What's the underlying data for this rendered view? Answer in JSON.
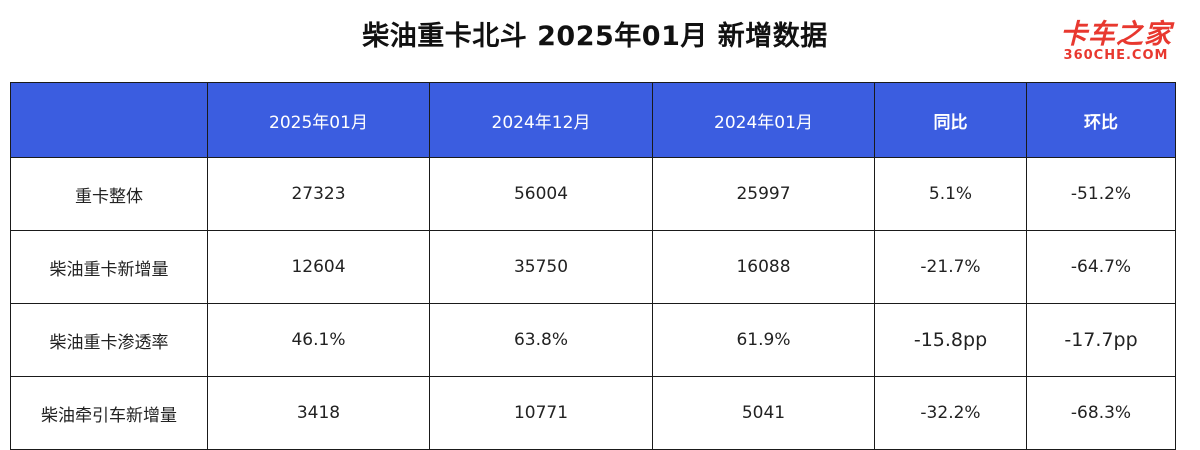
{
  "title": "柴油重卡北斗 2025年01月 新增数据",
  "logo": {
    "main": "卡车之家",
    "sub": "360CHE.COM"
  },
  "table": {
    "headers": [
      "",
      "2025年01月",
      "2024年12月",
      "2024年01月",
      "同比",
      "环比"
    ],
    "rows": [
      {
        "label": "重卡整体",
        "values": [
          "27323",
          "56004",
          "25997",
          "5.1%",
          "-51.2%"
        ]
      },
      {
        "label": "柴油重卡新增量",
        "values": [
          "12604",
          "35750",
          "16088",
          "-21.7%",
          "-64.7%"
        ]
      },
      {
        "label": "柴油重卡渗透率",
        "values": [
          "46.1%",
          "63.8%",
          "61.9%",
          "-15.8pp",
          "-17.7pp"
        ]
      },
      {
        "label": "柴油牵引车新增量",
        "values": [
          "3418",
          "10771",
          "5041",
          "-32.2%",
          "-68.3%"
        ]
      }
    ]
  },
  "colors": {
    "header_bg": "#3b5de0",
    "header_text": "#ffffff",
    "logo": "#e8382f"
  }
}
